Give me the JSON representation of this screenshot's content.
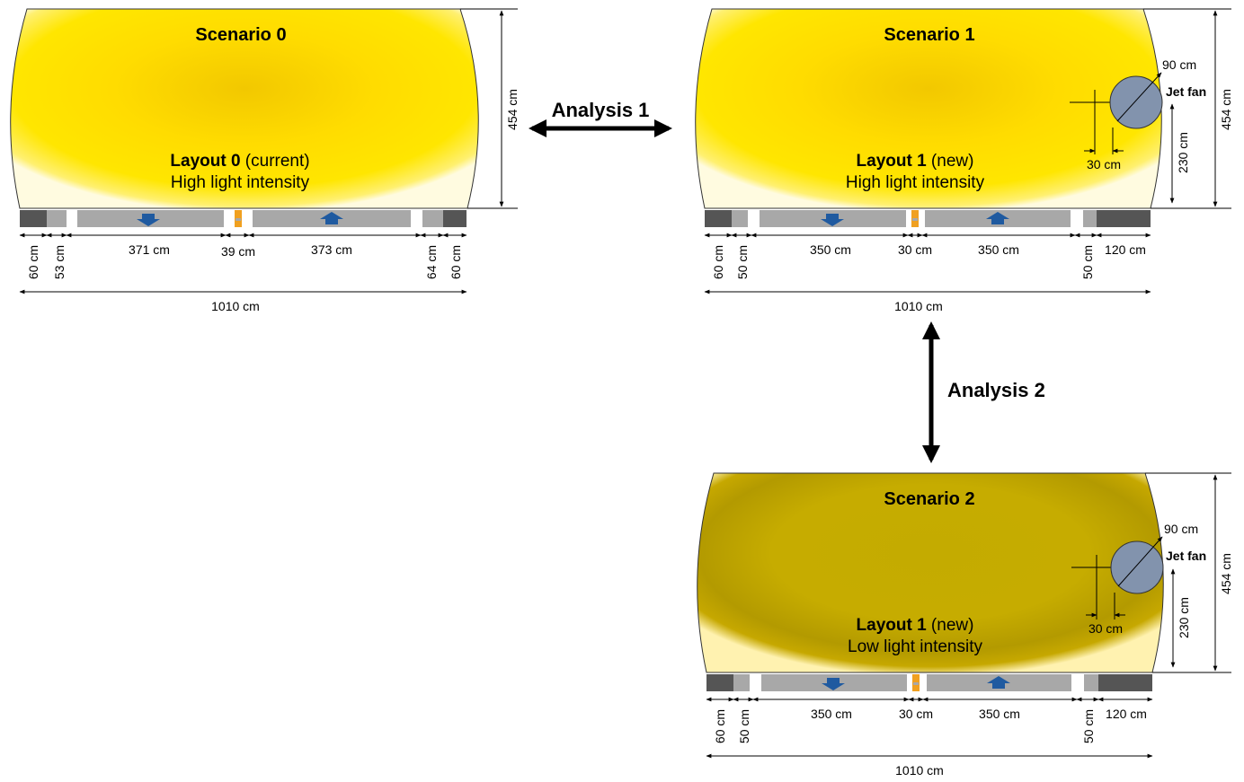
{
  "analysis_1_label": "Analysis 1",
  "analysis_2_label": "Analysis 2",
  "scenarios": [
    {
      "title": "Scenario 0",
      "layout_bold": "Layout 0",
      "layout_rest": " (current)",
      "light": "High light intensity",
      "height": "454 cm",
      "width": "1010 cm",
      "low_light": false,
      "jet_fan": false,
      "dims_above": [
        "371 cm",
        "39 cm",
        "373 cm"
      ],
      "dims_vertical": [
        "60 cm",
        "53 cm",
        "64 cm",
        "60 cm"
      ],
      "dim_right_horizontal": ""
    },
    {
      "title": "Scenario 1",
      "layout_bold": "Layout 1",
      "layout_rest": " (new)",
      "light": "High light intensity",
      "height": "454 cm",
      "width": "1010 cm",
      "low_light": false,
      "jet_fan": true,
      "jet_fan_label": "Jet fan",
      "jet_fan_diameter": "90 cm",
      "jet_fan_offset": "30 cm",
      "jet_fan_height": "230 cm",
      "dims_above": [
        "350 cm",
        "30 cm",
        "350 cm"
      ],
      "dims_vertical": [
        "60 cm",
        "50 cm",
        "50 cm"
      ],
      "dim_right_horizontal": "120 cm"
    },
    {
      "title": "Scenario 2",
      "layout_bold": "Layout 1",
      "layout_rest": " (new)",
      "light": "Low light intensity",
      "height": "454 cm",
      "width": "1010 cm",
      "low_light": true,
      "jet_fan": true,
      "jet_fan_label": "Jet fan",
      "jet_fan_diameter": "90 cm",
      "jet_fan_offset": "30 cm",
      "jet_fan_height": "230 cm",
      "dims_above": [
        "350 cm",
        "30 cm",
        "350 cm"
      ],
      "dims_vertical": [
        "60 cm",
        "50 cm",
        "50 cm"
      ],
      "dim_right_horizontal": "120 cm"
    }
  ],
  "colors": {
    "high_light": "#ffe000",
    "high_light_center": "#f7cf00",
    "low_light": "#c6ac00",
    "low_light_dark": "#b09800",
    "road": "#a8a8a8",
    "curb": "#555555",
    "arrow": "#1f5aa0",
    "fan": "#8293ad",
    "median": "#f0a020"
  }
}
